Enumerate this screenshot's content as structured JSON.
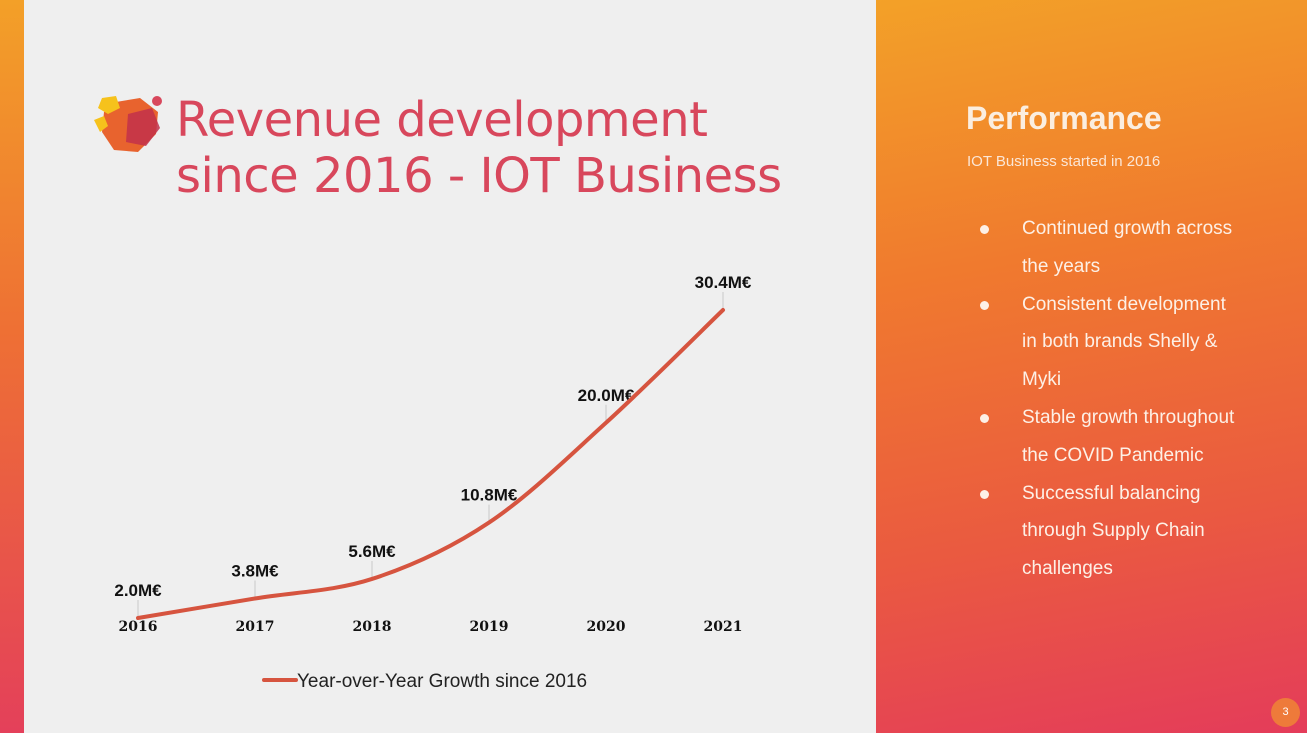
{
  "slide": {
    "title_line1": "Revenue development",
    "title_line2": "since 2016 - IOT Business",
    "page_number": "3"
  },
  "panel": {
    "title": "Performance",
    "subtitle": "IOT Business started in 2016",
    "bullets": [
      "Continued growth across the years",
      "Consistent development in both brands Shelly & Myki",
      "Stable growth throughout the COVID Pandemic",
      "Successful balancing through Supply Chain challenges"
    ]
  },
  "colors": {
    "title": "#d8475c",
    "line": "#d6543f",
    "panel_gradient_top": "#f3a128",
    "panel_gradient_bottom": "#e43c5a"
  },
  "chart_data": {
    "type": "line",
    "categories": [
      "2016",
      "2017",
      "2018",
      "2019",
      "2020",
      "2021"
    ],
    "series": [
      {
        "name": "Year-over-Year Growth since 2016",
        "values": [
          2.0,
          3.8,
          5.6,
          10.8,
          20.0,
          30.4
        ],
        "labels": [
          "2.0M€",
          "3.8M€",
          "5.6M€",
          "10.8M€",
          "20.0M€",
          "30.4M€"
        ],
        "color": "#d6543f"
      }
    ],
    "title": "",
    "xlabel": "",
    "ylabel": "",
    "ylim": [
      0,
      30.4
    ],
    "grid": false,
    "legend": "bottom"
  }
}
